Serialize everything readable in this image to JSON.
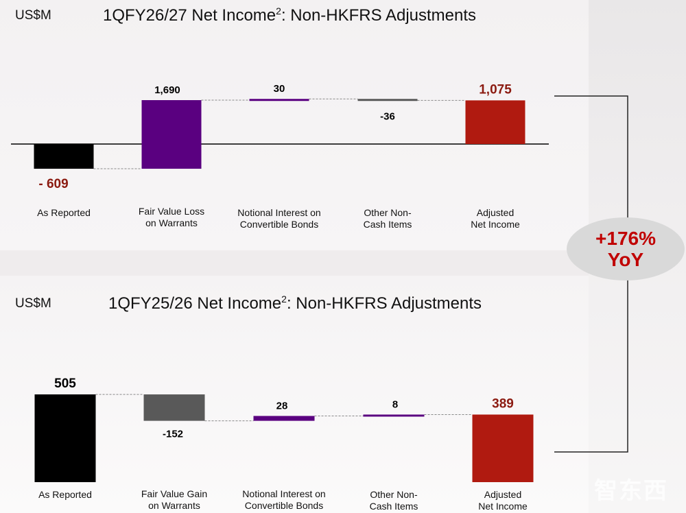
{
  "top": {
    "units": "US$M",
    "title_main": "1QFY26/27 Net Income",
    "title_sup": "2",
    "title_rest": ": Non-HKFRS Adjustments"
  },
  "bottom": {
    "units": "US$M",
    "title_main": "1QFY25/26 Net Income",
    "title_sup": "2",
    "title_rest": ": Non-HKFRS Adjustments"
  },
  "yoy": {
    "line1": "+176%",
    "line2": "YoY"
  },
  "watermark": "智东西",
  "colors": {
    "black": "#000000",
    "purple": "#5a0080",
    "gray": "#595959",
    "red": "#b01a10",
    "dark_red": "#8b1a10"
  },
  "chart_data": [
    {
      "type": "bar",
      "subtype": "waterfall",
      "title": "1QFY26/27 Net Income2: Non-HKFRS Adjustments",
      "ylabel": "US$M",
      "categories": [
        "As Reported",
        "Fair Value Loss\non Warrants",
        "Notional Interest on\nConvertible Bonds",
        "Other Non-\nCash Items",
        "Adjusted\nNet Income"
      ],
      "values": [
        -609,
        1690,
        30,
        -36,
        1075
      ],
      "labels": [
        "- 609",
        "1,690",
        "30",
        "-36",
        "1,075"
      ],
      "kinds": [
        "total",
        "delta",
        "delta",
        "delta",
        "total"
      ],
      "colors": [
        "#000000",
        "#5a0080",
        "#5a0080",
        "#595959",
        "#b01a10"
      ]
    },
    {
      "type": "bar",
      "subtype": "waterfall",
      "title": "1QFY25/26 Net Income2: Non-HKFRS Adjustments",
      "ylabel": "US$M",
      "categories": [
        "As Reported",
        "Fair Value Gain\non Warrants",
        "Notional Interest on\nConvertible Bonds",
        "Other Non-\nCash Items",
        "Adjusted\nNet Income"
      ],
      "values": [
        505,
        -152,
        28,
        8,
        389
      ],
      "labels": [
        "505",
        "-152",
        "28",
        "8",
        "389"
      ],
      "kinds": [
        "total",
        "delta",
        "delta",
        "delta",
        "total"
      ],
      "colors": [
        "#000000",
        "#595959",
        "#5a0080",
        "#5a0080",
        "#b01a10"
      ]
    }
  ]
}
